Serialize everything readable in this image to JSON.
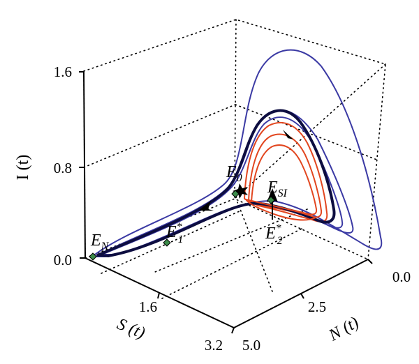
{
  "chart_data": {
    "type": "line",
    "projection": "3d",
    "axes": {
      "x": {
        "label": "S (t)",
        "ticks": [
          "1.6",
          "3.2"
        ]
      },
      "y": {
        "label": "N (t)",
        "ticks": [
          "0.0",
          "2.5",
          "5.0"
        ]
      },
      "z": {
        "label": "I (t)",
        "ticks": [
          "0.0",
          "0.8",
          "1.6"
        ]
      }
    },
    "equilibria": [
      {
        "label": "E",
        "sub": "N",
        "sup": ""
      },
      {
        "label": "E",
        "sub": "1",
        "sup": "*"
      },
      {
        "label": "E",
        "sub": "0",
        "sup": ""
      },
      {
        "label": "E",
        "sub": "SI",
        "sup": ""
      },
      {
        "label": "E",
        "sub": "2",
        "sup": "*"
      }
    ],
    "trajectory_colors": {
      "outer": "#3b3aa4",
      "inner": "#e2461f",
      "main": "#0d0d40"
    },
    "marker_color": "#3c8c4a"
  }
}
